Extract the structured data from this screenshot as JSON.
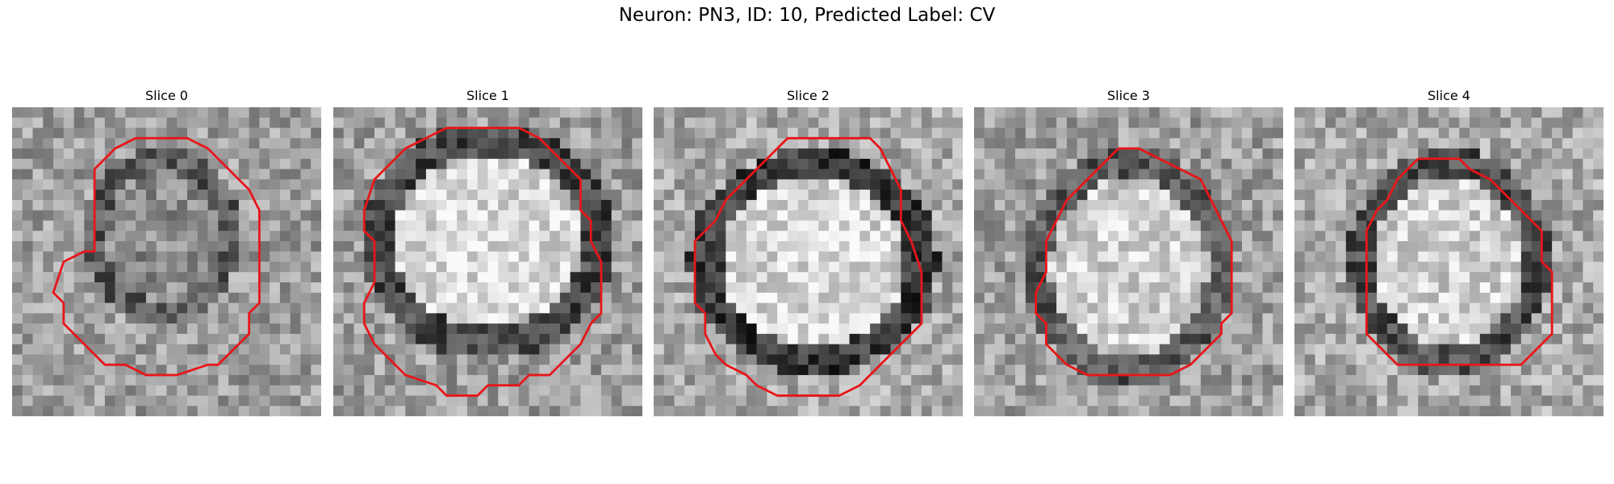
{
  "figure": {
    "title": "Neuron: PN3, ID: 10, Predicted Label: CV"
  },
  "panels": [
    {
      "title": "Slice 0"
    },
    {
      "title": "Slice 1"
    },
    {
      "title": "Slice 2"
    },
    {
      "title": "Slice 3"
    },
    {
      "title": "Slice 4"
    }
  ],
  "colors": {
    "contour": "#e8161a",
    "background": "#ffffff"
  }
}
